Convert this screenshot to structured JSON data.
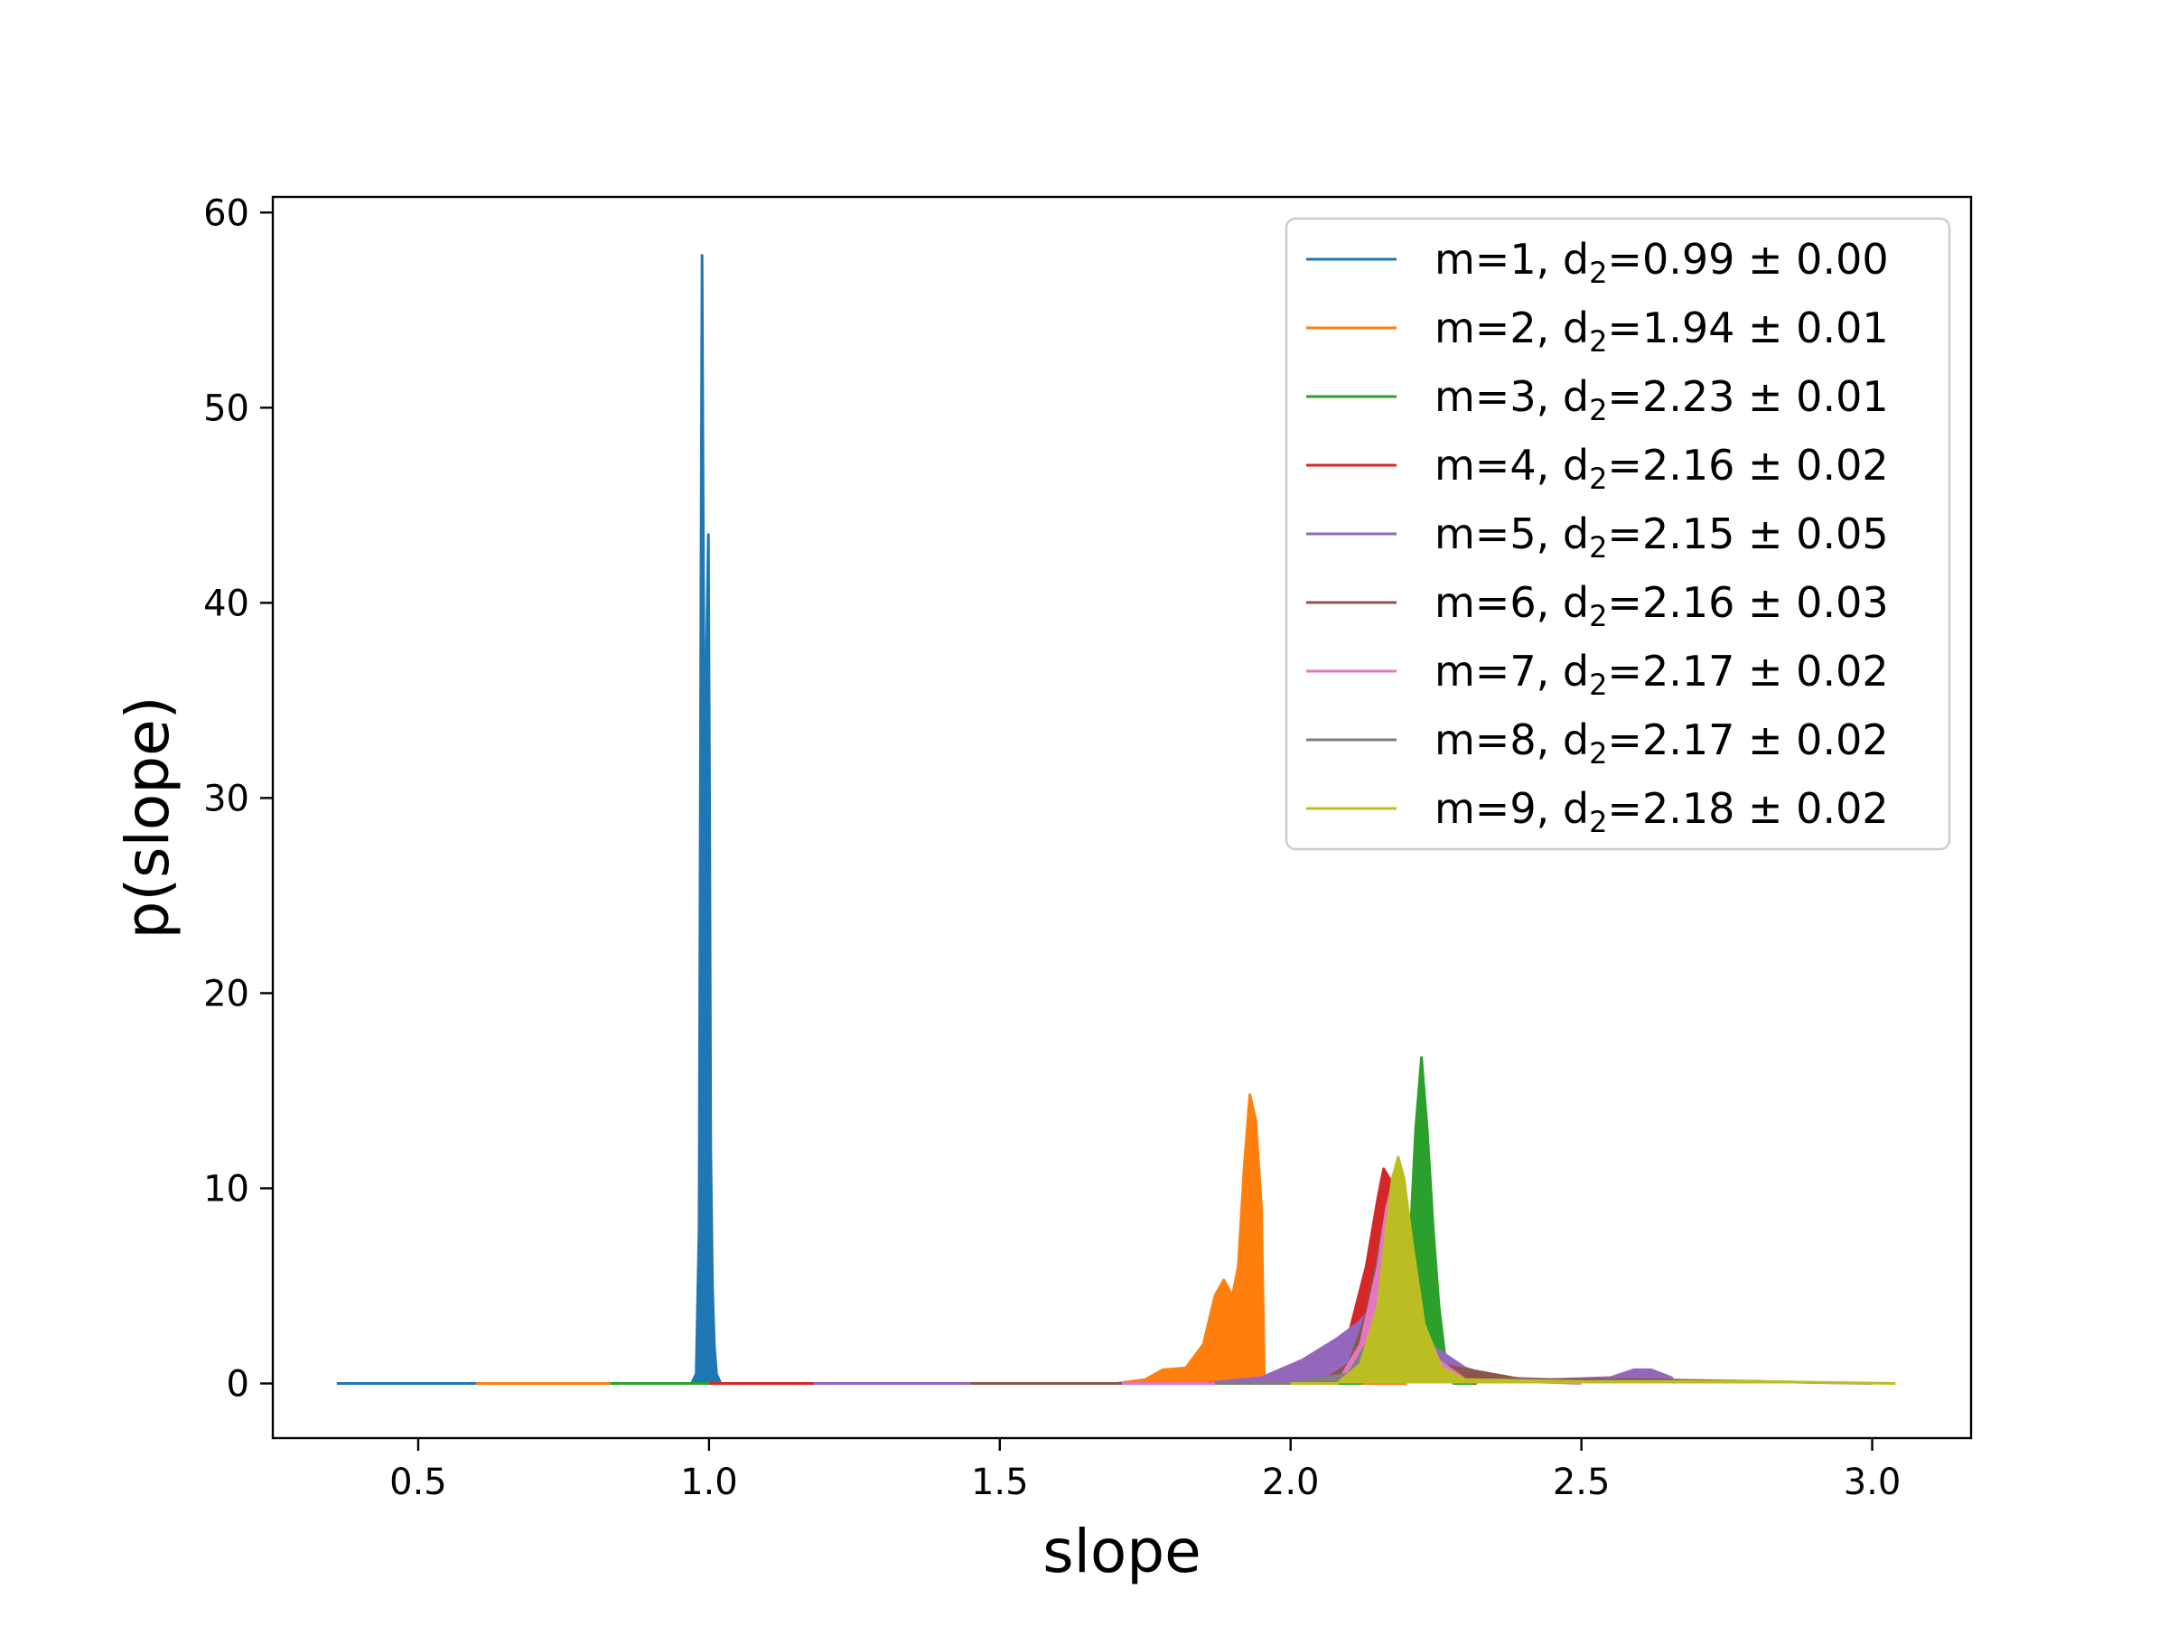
{
  "chart_data": {
    "type": "area",
    "title": "",
    "xlabel": "slope",
    "ylabel": "p(slope)",
    "xlim": [
      0.25,
      3.17
    ],
    "ylim": [
      -2.8,
      60.8
    ],
    "xticks": [
      0.5,
      1.0,
      1.5,
      2.0,
      2.5,
      3.0
    ],
    "xtick_labels": [
      "0.5",
      "1.0",
      "1.5",
      "2.0",
      "2.5",
      "3.0"
    ],
    "yticks": [
      0,
      10,
      20,
      30,
      40,
      50,
      60
    ],
    "ytick_labels": [
      "0",
      "10",
      "20",
      "30",
      "40",
      "50",
      "60"
    ],
    "grid": false,
    "legend_position": "top-right",
    "series": [
      {
        "name": "m=1, d₂=0.99 ± 0.00",
        "legend": {
          "prefix": "m=1, d",
          "sub": "2",
          "suffix": "=0.99 ± 0.00"
        },
        "color": "#1f77b4",
        "x": [
          0.36,
          0.6,
          0.97,
          0.978,
          0.983,
          0.986,
          0.988,
          0.99,
          0.993,
          0.996,
          0.999,
          1.001,
          1.003,
          1.006,
          1.009,
          1.013,
          1.02,
          1.2
        ],
        "y": [
          0,
          0,
          0,
          0.5,
          8,
          40,
          57.8,
          45,
          25,
          38,
          43.5,
          30,
          12,
          5,
          2,
          0.5,
          0,
          0
        ]
      },
      {
        "name": "m=2, d₂=1.94 ± 0.01",
        "legend": {
          "prefix": "m=2, d",
          "sub": "2",
          "suffix": "=1.94 ± 0.01"
        },
        "color": "#ff7f0e",
        "x": [
          0.6,
          0.83,
          1.7,
          1.75,
          1.78,
          1.82,
          1.85,
          1.87,
          1.885,
          1.9,
          1.91,
          1.92,
          1.93,
          1.94,
          1.95,
          1.955,
          2.2
        ],
        "y": [
          0,
          0,
          0,
          0.2,
          0.7,
          0.8,
          2,
          4.5,
          5.3,
          4.5,
          6,
          11,
          14.8,
          13.5,
          9,
          0,
          0
        ]
      },
      {
        "name": "m=3, d₂=2.23 ± 0.01",
        "legend": {
          "prefix": "m=3, d",
          "sub": "2",
          "suffix": "=2.23 ± 0.01"
        },
        "color": "#2ca02c",
        "x": [
          0.83,
          1.18,
          2.12,
          2.15,
          2.165,
          2.18,
          2.195,
          2.205,
          2.215,
          2.225,
          2.235,
          2.245,
          2.255,
          2.265,
          2.28,
          2.32
        ],
        "y": [
          0,
          0,
          0,
          0.5,
          3,
          4.5,
          3.5,
          7,
          13,
          16.7,
          13,
          8,
          4,
          1.5,
          0,
          0
        ]
      },
      {
        "name": "m=4, d₂=2.16 ± 0.02",
        "legend": {
          "prefix": "m=4, d",
          "sub": "2",
          "suffix": "=2.16 ± 0.02"
        },
        "color": "#d62728",
        "x": [
          1.0,
          1.18,
          2.0,
          2.06,
          2.1,
          2.13,
          2.15,
          2.16,
          2.17,
          2.18,
          2.2,
          2.22,
          2.25,
          2.32
        ],
        "y": [
          0,
          0,
          0,
          0.5,
          2.5,
          6,
          9.5,
          11,
          10.5,
          9,
          5,
          2,
          0.5,
          0
        ]
      },
      {
        "name": "m=5, d₂=2.15 ± 0.05",
        "legend": {
          "prefix": "m=5, d",
          "sub": "2",
          "suffix": "=2.15 ± 0.05"
        },
        "color": "#9467bd",
        "x": [
          1.18,
          1.45,
          1.85,
          1.95,
          2.02,
          2.08,
          2.12,
          2.15,
          2.2,
          2.25,
          2.3,
          2.35,
          2.45,
          2.55,
          2.59,
          2.62,
          2.655,
          2.66
        ],
        "y": [
          0,
          0,
          0,
          0.3,
          1.2,
          2.3,
          3.2,
          4.3,
          3,
          1.8,
          0.8,
          0.3,
          0.2,
          0.3,
          0.7,
          0.7,
          0.3,
          0
        ]
      },
      {
        "name": "m=6, d₂=2.16 ± 0.03",
        "legend": {
          "prefix": "m=6, d",
          "sub": "2",
          "suffix": "=2.16 ± 0.03"
        },
        "color": "#8c564b",
        "x": [
          1.45,
          1.71,
          2.05,
          2.1,
          2.13,
          2.15,
          2.16,
          2.175,
          2.19,
          2.21,
          2.25,
          2.4,
          2.6,
          2.81
        ],
        "y": [
          0,
          0,
          0,
          1,
          3.5,
          6.5,
          8.2,
          7.5,
          5.5,
          3,
          1,
          0.2,
          0.2,
          0.1
        ]
      },
      {
        "name": "m=7, d₂=2.17 ± 0.02",
        "legend": {
          "prefix": "m=7, d",
          "sub": "2",
          "suffix": "=2.17 ± 0.02"
        },
        "color": "#e377c2",
        "x": [
          1.71,
          1.87,
          2.08,
          2.12,
          2.15,
          2.165,
          2.175,
          2.19,
          2.21,
          2.24,
          2.3,
          2.5
        ],
        "y": [
          0,
          0,
          0,
          2,
          6,
          9,
          10.2,
          9,
          5,
          1.5,
          0.2,
          0
        ]
      },
      {
        "name": "m=8, d₂=2.17 ± 0.02",
        "legend": {
          "prefix": "m=8, d",
          "sub": "2",
          "suffix": "=2.17 ± 0.02"
        },
        "color": "#7f7f7f",
        "x": [
          1.87,
          2.0,
          2.1,
          2.13,
          2.15,
          2.17,
          2.19,
          2.21,
          2.24,
          2.3,
          2.5,
          2.8,
          3.0
        ],
        "y": [
          0,
          0,
          0.5,
          2,
          3.5,
          4.3,
          3.5,
          2,
          0.8,
          0.2,
          0.1,
          0.1,
          0
        ]
      },
      {
        "name": "m=9, d₂=2.18 ± 0.02",
        "legend": {
          "prefix": "m=9, d",
          "sub": "2",
          "suffix": "=2.18 ± 0.02"
        },
        "color": "#bcbd22",
        "x": [
          2.0,
          2.08,
          2.12,
          2.15,
          2.165,
          2.175,
          2.185,
          2.195,
          2.21,
          2.23,
          2.26,
          2.3,
          2.5,
          2.8,
          3.04
        ],
        "y": [
          0,
          0,
          1,
          4,
          8,
          10.5,
          11.6,
          10.5,
          7,
          3,
          0.8,
          0.2,
          0.1,
          0.1,
          0
        ]
      }
    ]
  }
}
